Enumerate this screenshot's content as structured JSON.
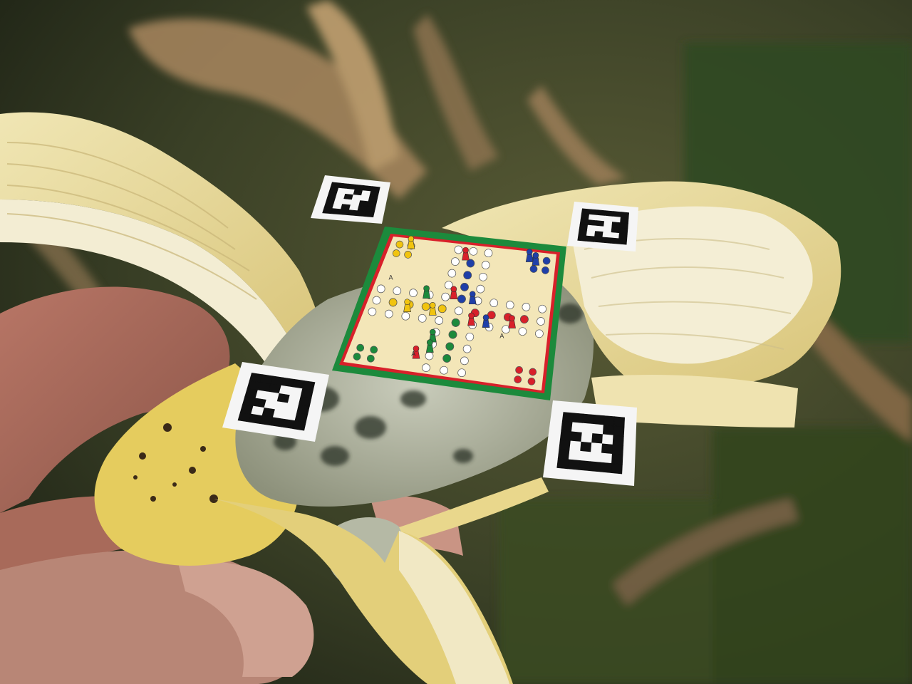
{
  "scene": {
    "description_free": true,
    "colors": {
      "background_dark": "#2e3220",
      "background_olive": "#4d5a2e",
      "dry_leaf": "#b8956a",
      "banana_peel": "#e7d27a",
      "banana_inner": "#f2ecce",
      "rot": "#9ba08a",
      "skin": "#c98c78",
      "board_green": "#1c8a3c",
      "board_red": "#d8202a",
      "board_cream": "#f3e6b8",
      "marker_black": "#111111",
      "marker_white": "#f5f5f5"
    },
    "markers": [
      {
        "name": "marker-top-left",
        "pattern": [
          "000000",
          "011010",
          "010110",
          "011100",
          "010100",
          "000000"
        ]
      },
      {
        "name": "marker-top-right",
        "pattern": [
          "000000",
          "011110",
          "000100",
          "011100",
          "010110",
          "000000"
        ]
      },
      {
        "name": "marker-bottom-left",
        "pattern": [
          "000000",
          "000110",
          "011010",
          "001110",
          "010110",
          "000000"
        ]
      },
      {
        "name": "marker-bottom-right",
        "pattern": [
          "000000",
          "011100",
          "001010",
          "010100",
          "011110",
          "000000"
        ]
      }
    ],
    "board": {
      "corner_colors": [
        "#f1c40f",
        "#1f3fa8",
        "#1c8a3c",
        "#d8202a"
      ],
      "home_letter": "A"
    }
  }
}
